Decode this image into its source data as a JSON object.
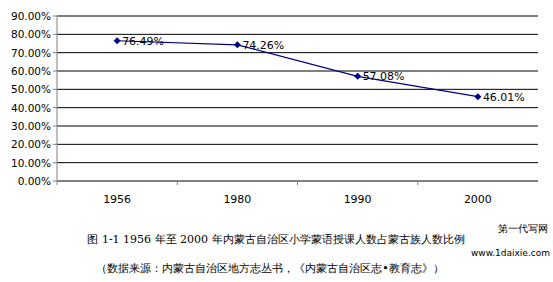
{
  "chart_data": {
    "type": "line",
    "caption": "图 1-1 1956 年至 2000 年内蒙古自治区小学蒙语授课人数占蒙古族人数比例",
    "source": "（数据来源：内蒙古自治区地方志丛书，《内蒙古自治区志•教育志》）",
    "watermark": [
      "第一代写网",
      "www.1daixie.com"
    ],
    "categories": [
      "1956",
      "1980",
      "1990",
      "2000"
    ],
    "values": [
      76.49,
      74.26,
      57.08,
      46.01
    ],
    "value_labels": [
      "76.49%",
      "74.26%",
      "57.08%",
      "46.01%"
    ],
    "color": "#000080",
    "marker": "diamond",
    "data_labels": true,
    "grid": true,
    "ylim": [
      0,
      90
    ],
    "yticks": [
      {
        "value": 0,
        "label": "0.00%"
      },
      {
        "value": 10,
        "label": "10.00%"
      },
      {
        "value": 20,
        "label": "20.00%"
      },
      {
        "value": 30,
        "label": "30.00%"
      },
      {
        "value": 40,
        "label": "40.00%"
      },
      {
        "value": 50,
        "label": "50.00%"
      },
      {
        "value": 60,
        "label": "60.00%"
      },
      {
        "value": 70,
        "label": "70.00%"
      },
      {
        "value": 80,
        "label": "80.00%"
      },
      {
        "value": 90,
        "label": "90.00%"
      }
    ]
  }
}
